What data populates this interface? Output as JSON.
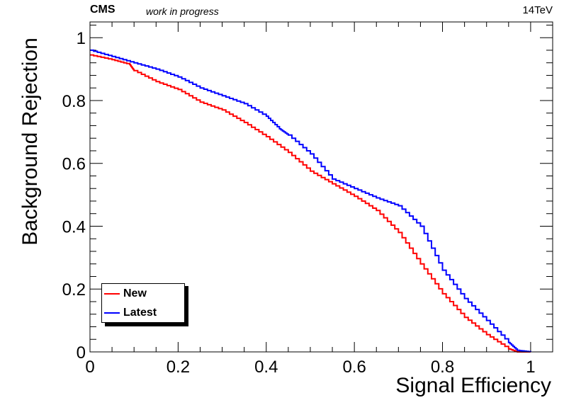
{
  "header": {
    "experiment": "CMS",
    "status": "work in progress",
    "energy": "14TeV"
  },
  "chart_data": {
    "type": "line",
    "title": "",
    "xlabel": "Signal Efficiency",
    "ylabel": "Background Rejection",
    "xlim": [
      0,
      1.05
    ],
    "ylim": [
      0,
      1.05
    ],
    "xticks": [
      "0",
      "0.2",
      "0.4",
      "0.6",
      "0.8",
      "1"
    ],
    "yticks": [
      "0",
      "0.2",
      "0.4",
      "0.6",
      "0.8",
      "1"
    ],
    "grid": false,
    "legend_position": "bottom-left",
    "series": [
      {
        "name": "New",
        "color": "#ff0000",
        "x": [
          0.0,
          0.05,
          0.09,
          0.1,
          0.15,
          0.2,
          0.25,
          0.3,
          0.35,
          0.4,
          0.45,
          0.5,
          0.55,
          0.6,
          0.65,
          0.7,
          0.75,
          0.8,
          0.85,
          0.9,
          0.95,
          0.97,
          1.0
        ],
        "y": [
          0.945,
          0.93,
          0.915,
          0.895,
          0.86,
          0.835,
          0.795,
          0.77,
          0.73,
          0.685,
          0.635,
          0.575,
          0.535,
          0.495,
          0.45,
          0.38,
          0.28,
          0.185,
          0.11,
          0.055,
          0.01,
          0.0,
          0.0
        ]
      },
      {
        "name": "Latest",
        "color": "#0000ff",
        "x": [
          0.0,
          0.05,
          0.1,
          0.15,
          0.2,
          0.25,
          0.3,
          0.35,
          0.4,
          0.43,
          0.45,
          0.5,
          0.55,
          0.6,
          0.65,
          0.7,
          0.75,
          0.8,
          0.85,
          0.9,
          0.95,
          0.97,
          1.0
        ],
        "y": [
          0.96,
          0.94,
          0.92,
          0.9,
          0.875,
          0.84,
          0.815,
          0.79,
          0.75,
          0.71,
          0.69,
          0.63,
          0.55,
          0.52,
          0.49,
          0.465,
          0.4,
          0.26,
          0.17,
          0.1,
          0.03,
          0.005,
          0.0
        ]
      }
    ]
  }
}
